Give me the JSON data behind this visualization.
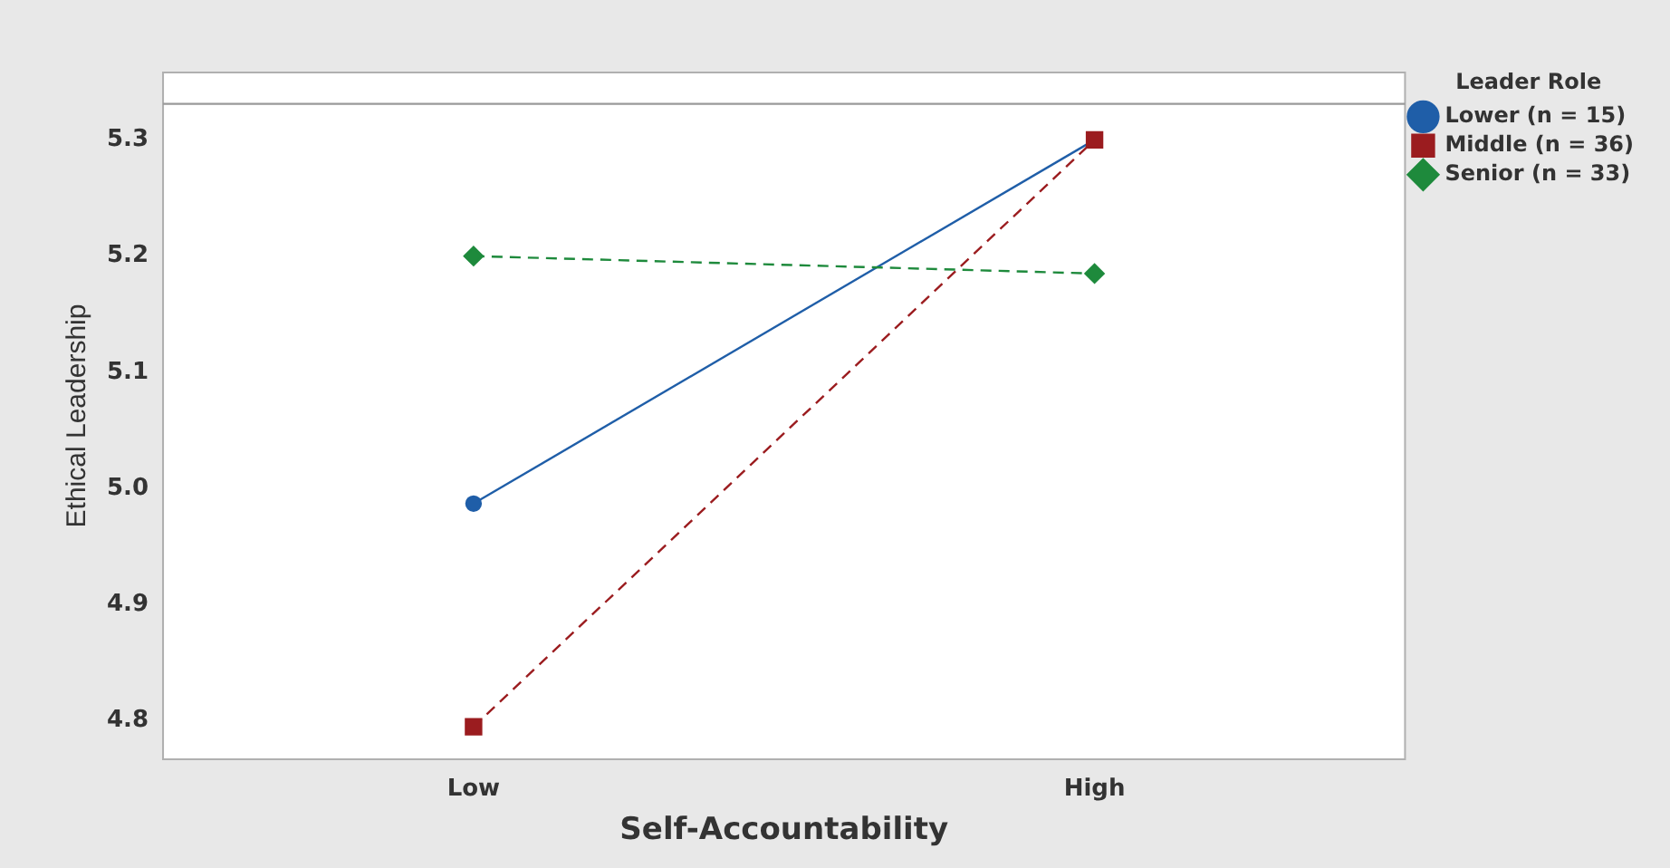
{
  "chart_data": {
    "type": "line",
    "xlabel": "Self-Accountability",
    "ylabel": "Ethical Leadership",
    "legend_title": "Leader Role",
    "categories": [
      "Low",
      "High"
    ],
    "series": [
      {
        "name": "Lower (n = 15)",
        "color": "#1f5ea8",
        "values": [
          4.987,
          5.3
        ],
        "marker": "circle",
        "line_style": "solid"
      },
      {
        "name": "Middle (n = 36)",
        "color": "#9b1c1f",
        "values": [
          4.795,
          5.3
        ],
        "marker": "square",
        "line_style": "dashed"
      },
      {
        "name": "Senior (n = 33)",
        "color": "#1e8a3c",
        "values": [
          5.2,
          5.185
        ],
        "marker": "diamond",
        "line_style": "dashed"
      }
    ],
    "ylim": [
      4.767,
      5.358
    ],
    "yticks": [
      {
        "value": 4.8,
        "label": "4.8"
      },
      {
        "value": 4.9,
        "label": "4.9"
      },
      {
        "value": 5.0,
        "label": "5.0"
      },
      {
        "value": 5.1,
        "label": "5.1"
      },
      {
        "value": 5.2,
        "label": "5.2"
      },
      {
        "value": 5.3,
        "label": "5.3"
      }
    ],
    "ref_lines": [
      {
        "axis": "y",
        "value": 5.331,
        "color": "#9a9a9a"
      }
    ],
    "grid": false,
    "legend": "right"
  }
}
